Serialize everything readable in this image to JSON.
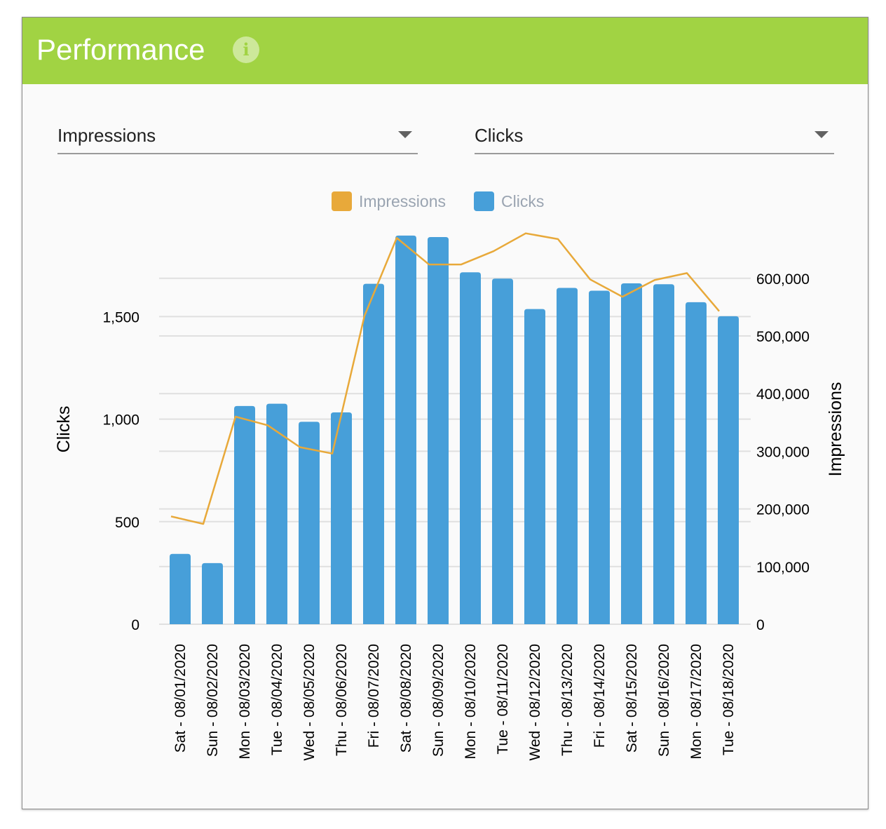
{
  "header": {
    "title": "Performance",
    "info_icon": "info-icon"
  },
  "selectors": {
    "left": {
      "value": "Impressions",
      "icon": "chevron-down-icon"
    },
    "right": {
      "value": "Clicks",
      "icon": "chevron-down-icon"
    }
  },
  "colors": {
    "header": "#a1d343",
    "clicks": "#479fd9",
    "impressions": "#e8a93a"
  },
  "chart_data": {
    "type": "bar",
    "legend": [
      "Impressions",
      "Clicks"
    ],
    "legend_position": "top",
    "categories": [
      "Sat - 08/01/2020",
      "Sun - 08/02/2020",
      "Mon - 08/03/2020",
      "Tue - 08/04/2020",
      "Wed - 08/05/2020",
      "Thu - 08/06/2020",
      "Fri - 08/07/2020",
      "Sat - 08/08/2020",
      "Sun - 08/09/2020",
      "Mon - 08/10/2020",
      "Tue - 08/11/2020",
      "Wed - 08/12/2020",
      "Thu - 08/13/2020",
      "Fri - 08/14/2020",
      "Sat - 08/15/2020",
      "Sun - 08/16/2020",
      "Mon - 08/17/2020",
      "Tue - 08/18/2020"
    ],
    "series": [
      {
        "name": "Clicks",
        "type": "bar",
        "axis": "left",
        "values": [
          343,
          298,
          1064,
          1075,
          987,
          1033,
          1660,
          1895,
          1888,
          1716,
          1685,
          1537,
          1640,
          1626,
          1662,
          1658,
          1570,
          1502
        ]
      },
      {
        "name": "Impressions",
        "type": "line",
        "axis": "right",
        "values": [
          187000,
          174000,
          360000,
          345000,
          307000,
          296000,
          535000,
          670000,
          624000,
          624000,
          647000,
          678000,
          668000,
          598000,
          568000,
          597000,
          609000,
          543000
        ]
      }
    ],
    "y_left": {
      "label": "Clicks",
      "range": [
        0,
        1900
      ],
      "ticks": [
        0,
        500,
        1000,
        1500
      ],
      "tick_labels": [
        "0",
        "500",
        "1,000",
        "1,500"
      ]
    },
    "y_right": {
      "label": "Impressions",
      "range": [
        0,
        600000
      ],
      "ticks": [
        0,
        100000,
        200000,
        300000,
        400000,
        500000,
        600000
      ],
      "tick_labels": [
        "0",
        "100,000",
        "200,000",
        "300,000",
        "400,000",
        "500,000",
        "600,000"
      ]
    },
    "grid": true
  }
}
